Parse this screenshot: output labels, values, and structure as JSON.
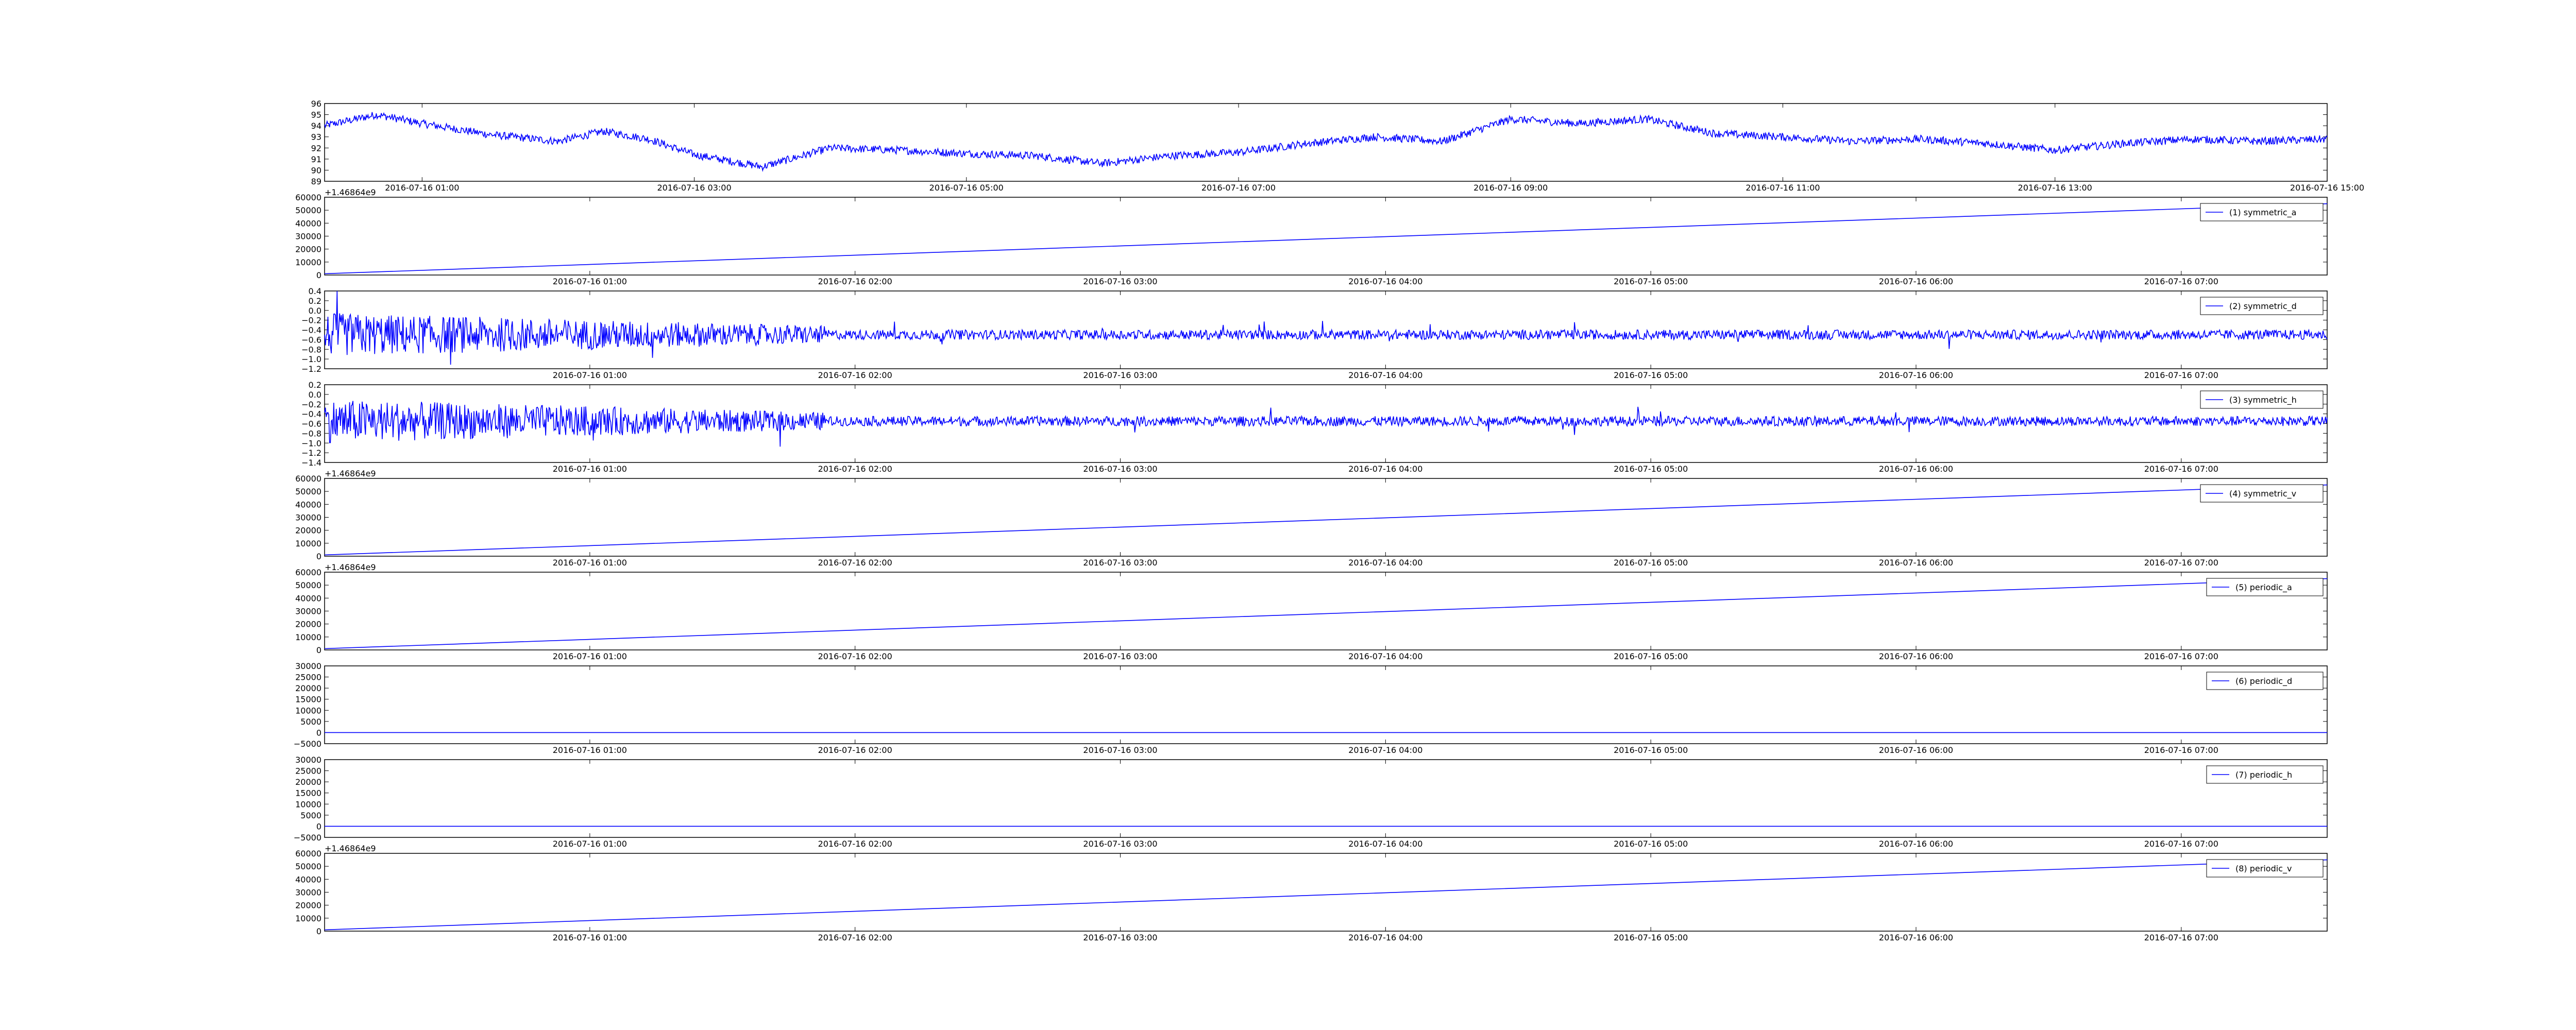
{
  "chart_data": [
    {
      "type": "line",
      "title": "",
      "xlabel": "",
      "ylabel": "",
      "ylim": [
        89,
        96
      ],
      "yticks": [
        "96",
        "95",
        "94",
        "93",
        "92",
        "91",
        "90",
        "89"
      ],
      "xticks": [
        "2016-07-16 01:00",
        "2016-07-16 03:00",
        "2016-07-16 05:00",
        "2016-07-16 07:00",
        "2016-07-16 09:00",
        "2016-07-16 11:00",
        "2016-07-16 13:00",
        "2016-07-16 15:00"
      ],
      "x_range": [
        "2016-07-16 00:17",
        "2016-07-16 15:00"
      ],
      "legend": null,
      "offset_text": "",
      "color": "#0000ff",
      "style": "noisy",
      "series": [
        {
          "x": [
            "2016-07-16 00:17",
            "2016-07-16 00:40",
            "2016-07-16 01:00",
            "2016-07-16 01:30",
            "2016-07-16 02:00",
            "2016-07-16 02:20",
            "2016-07-16 02:40",
            "2016-07-16 03:00",
            "2016-07-16 03:30",
            "2016-07-16 04:00",
            "2016-07-16 04:30",
            "2016-07-16 05:00",
            "2016-07-16 05:30",
            "2016-07-16 06:00",
            "2016-07-16 06:30",
            "2016-07-16 07:00",
            "2016-07-16 07:30",
            "2016-07-16 08:00",
            "2016-07-16 08:30",
            "2016-07-16 09:00",
            "2016-07-16 09:30",
            "2016-07-16 10:00",
            "2016-07-16 10:30",
            "2016-07-16 11:00",
            "2016-07-16 11:30",
            "2016-07-16 12:00",
            "2016-07-16 12:30",
            "2016-07-16 13:00",
            "2016-07-16 13:30",
            "2016-07-16 14:00",
            "2016-07-16 14:30",
            "2016-07-16 15:00"
          ],
          "values": [
            94.0,
            95.0,
            94.2,
            93.2,
            92.6,
            93.5,
            92.8,
            91.4,
            90.3,
            92.0,
            91.8,
            91.5,
            91.3,
            90.6,
            91.3,
            91.6,
            92.4,
            93.0,
            92.6,
            94.6,
            94.2,
            94.6,
            93.3,
            93.0,
            92.6,
            92.8,
            92.4,
            91.8,
            92.4,
            92.8,
            92.6,
            92.8
          ]
        }
      ]
    },
    {
      "type": "line",
      "ylim": [
        0,
        60000
      ],
      "yticks": [
        "60000",
        "50000",
        "40000",
        "30000",
        "20000",
        "10000",
        "0"
      ],
      "xticks": [
        "2016-07-16 01:00",
        "2016-07-16 02:00",
        "2016-07-16 03:00",
        "2016-07-16 04:00",
        "2016-07-16 05:00",
        "2016-07-16 06:00",
        "2016-07-16 07:00"
      ],
      "x_range": [
        "2016-07-16 00:00",
        "2016-07-16 07:33"
      ],
      "legend": "(1) symmetric_a",
      "offset_text": "+1.46864e9",
      "color": "#0000ff",
      "style": "line",
      "series": [
        {
          "name": "(1) symmetric_a",
          "x": [
            "2016-07-16 00:00",
            "2016-07-16 07:33"
          ],
          "values": [
            1000,
            55000
          ]
        }
      ]
    },
    {
      "type": "line",
      "ylim": [
        -1.2,
        0.4
      ],
      "yticks": [
        "0.4",
        "0.2",
        "0.0",
        "−0.2",
        "−0.4",
        "−0.6",
        "−0.8",
        "−1.0",
        "−1.2"
      ],
      "xticks": [
        "2016-07-16 01:00",
        "2016-07-16 02:00",
        "2016-07-16 03:00",
        "2016-07-16 04:00",
        "2016-07-16 05:00",
        "2016-07-16 06:00",
        "2016-07-16 07:00"
      ],
      "x_range": [
        "2016-07-16 00:00",
        "2016-07-16 07:33"
      ],
      "legend": "(2) symmetric_d",
      "offset_text": "",
      "color": "#0000ff",
      "style": "noisy",
      "series": [
        {
          "name": "(2) symmetric_d",
          "x": [
            "2016-07-16 00:00",
            "2016-07-16 07:33"
          ],
          "values": [
            -0.5,
            -0.5
          ],
          "noise_amplitude": [
            0.45,
            0.1
          ]
        }
      ]
    },
    {
      "type": "line",
      "ylim": [
        -1.4,
        0.2
      ],
      "yticks": [
        "0.2",
        "0.0",
        "−0.2",
        "−0.4",
        "−0.6",
        "−0.8",
        "−1.0",
        "−1.2",
        "−1.4"
      ],
      "xticks": [
        "2016-07-16 01:00",
        "2016-07-16 02:00",
        "2016-07-16 03:00",
        "2016-07-16 04:00",
        "2016-07-16 05:00",
        "2016-07-16 06:00",
        "2016-07-16 07:00"
      ],
      "x_range": [
        "2016-07-16 00:00",
        "2016-07-16 07:33"
      ],
      "legend": "(3) symmetric_h",
      "offset_text": "",
      "color": "#0000ff",
      "style": "noisy",
      "series": [
        {
          "name": "(3) symmetric_h",
          "x": [
            "2016-07-16 00:00",
            "2016-07-16 07:33"
          ],
          "values": [
            -0.55,
            -0.55
          ],
          "noise_amplitude": [
            0.45,
            0.1
          ]
        }
      ]
    },
    {
      "type": "line",
      "ylim": [
        0,
        60000
      ],
      "yticks": [
        "60000",
        "50000",
        "40000",
        "30000",
        "20000",
        "10000",
        "0"
      ],
      "xticks": [
        "2016-07-16 01:00",
        "2016-07-16 02:00",
        "2016-07-16 03:00",
        "2016-07-16 04:00",
        "2016-07-16 05:00",
        "2016-07-16 06:00",
        "2016-07-16 07:00"
      ],
      "x_range": [
        "2016-07-16 00:00",
        "2016-07-16 07:33"
      ],
      "legend": "(4) symmetric_v",
      "offset_text": "+1.46864e9",
      "color": "#0000ff",
      "style": "line",
      "series": [
        {
          "name": "(4) symmetric_v",
          "x": [
            "2016-07-16 00:00",
            "2016-07-16 07:33"
          ],
          "values": [
            1000,
            55000
          ]
        }
      ]
    },
    {
      "type": "line",
      "ylim": [
        0,
        60000
      ],
      "yticks": [
        "60000",
        "50000",
        "40000",
        "30000",
        "20000",
        "10000",
        "0"
      ],
      "xticks": [
        "2016-07-16 01:00",
        "2016-07-16 02:00",
        "2016-07-16 03:00",
        "2016-07-16 04:00",
        "2016-07-16 05:00",
        "2016-07-16 06:00",
        "2016-07-16 07:00"
      ],
      "x_range": [
        "2016-07-16 00:00",
        "2016-07-16 07:33"
      ],
      "legend": "(5) periodic_a",
      "offset_text": "+1.46864e9",
      "color": "#0000ff",
      "style": "line",
      "series": [
        {
          "name": "(5) periodic_a",
          "x": [
            "2016-07-16 00:00",
            "2016-07-16 07:33"
          ],
          "values": [
            1000,
            55000
          ]
        }
      ]
    },
    {
      "type": "line",
      "ylim": [
        -5000,
        30000
      ],
      "yticks": [
        "30000",
        "25000",
        "20000",
        "15000",
        "10000",
        "5000",
        "0",
        "−5000"
      ],
      "xticks": [
        "2016-07-16 01:00",
        "2016-07-16 02:00",
        "2016-07-16 03:00",
        "2016-07-16 04:00",
        "2016-07-16 05:00",
        "2016-07-16 06:00",
        "2016-07-16 07:00"
      ],
      "x_range": [
        "2016-07-16 00:00",
        "2016-07-16 07:33"
      ],
      "legend": "(6) periodic_d",
      "offset_text": "",
      "color": "#0000ff",
      "style": "line",
      "series": [
        {
          "name": "(6) periodic_d",
          "x": [
            "2016-07-16 00:00",
            "2016-07-16 07:33"
          ],
          "values": [
            0,
            0
          ]
        }
      ]
    },
    {
      "type": "line",
      "ylim": [
        -5000,
        30000
      ],
      "yticks": [
        "30000",
        "25000",
        "20000",
        "15000",
        "10000",
        "5000",
        "0",
        "−5000"
      ],
      "xticks": [
        "2016-07-16 01:00",
        "2016-07-16 02:00",
        "2016-07-16 03:00",
        "2016-07-16 04:00",
        "2016-07-16 05:00",
        "2016-07-16 06:00",
        "2016-07-16 07:00"
      ],
      "x_range": [
        "2016-07-16 00:00",
        "2016-07-16 07:33"
      ],
      "legend": "(7) periodic_h",
      "offset_text": "",
      "color": "#0000ff",
      "style": "line",
      "series": [
        {
          "name": "(7) periodic_h",
          "x": [
            "2016-07-16 00:00",
            "2016-07-16 07:33"
          ],
          "values": [
            0,
            0
          ]
        }
      ]
    },
    {
      "type": "line",
      "ylim": [
        0,
        60000
      ],
      "yticks": [
        "60000",
        "50000",
        "40000",
        "30000",
        "20000",
        "10000",
        "0"
      ],
      "xticks": [
        "2016-07-16 01:00",
        "2016-07-16 02:00",
        "2016-07-16 03:00",
        "2016-07-16 04:00",
        "2016-07-16 05:00",
        "2016-07-16 06:00",
        "2016-07-16 07:00"
      ],
      "x_range": [
        "2016-07-16 00:00",
        "2016-07-16 07:33"
      ],
      "legend": "(8) periodic_v",
      "offset_text": "+1.46864e9",
      "color": "#0000ff",
      "style": "line",
      "series": [
        {
          "name": "(8) periodic_v",
          "x": [
            "2016-07-16 00:00",
            "2016-07-16 07:33"
          ],
          "values": [
            1000,
            55000
          ]
        }
      ]
    }
  ]
}
